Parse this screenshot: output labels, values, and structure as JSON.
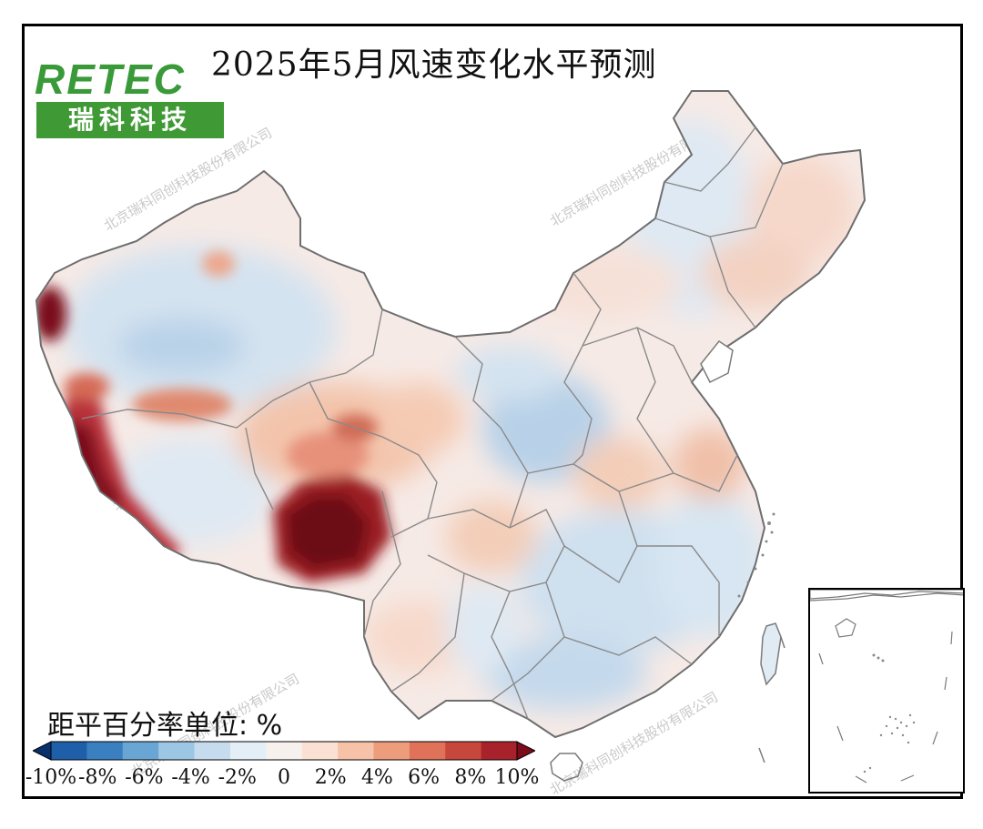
{
  "title": "2025年5月风速变化水平预测",
  "logo": {
    "top_text": "RETEC",
    "bottom_text": "瑞科科技"
  },
  "watermark": "北京瑞科同创科技股份有限公司",
  "unit_label": "距平百分率单位: %",
  "legend": {
    "ticks": [
      "-10%",
      "-8%",
      "-6%",
      "-4%",
      "-2%",
      "0",
      "2%",
      "4%",
      "6%",
      "8%",
      "10%"
    ],
    "colors": [
      "#08306b",
      "#1f5ea8",
      "#3a7fbf",
      "#6aa6d4",
      "#9cc6e4",
      "#c6dcee",
      "#e4eef7",
      "#f7f1ee",
      "#fbe1d4",
      "#f6c3a8",
      "#ee9d7c",
      "#df7258",
      "#c8473c",
      "#a8222b",
      "#7c0b1c"
    ]
  },
  "colors": {
    "anomaly_min": "#08306b",
    "anomaly_max": "#67000d",
    "border": "#7a7a7a",
    "frame": "#000000",
    "logo_green": "#3f9a35"
  }
}
